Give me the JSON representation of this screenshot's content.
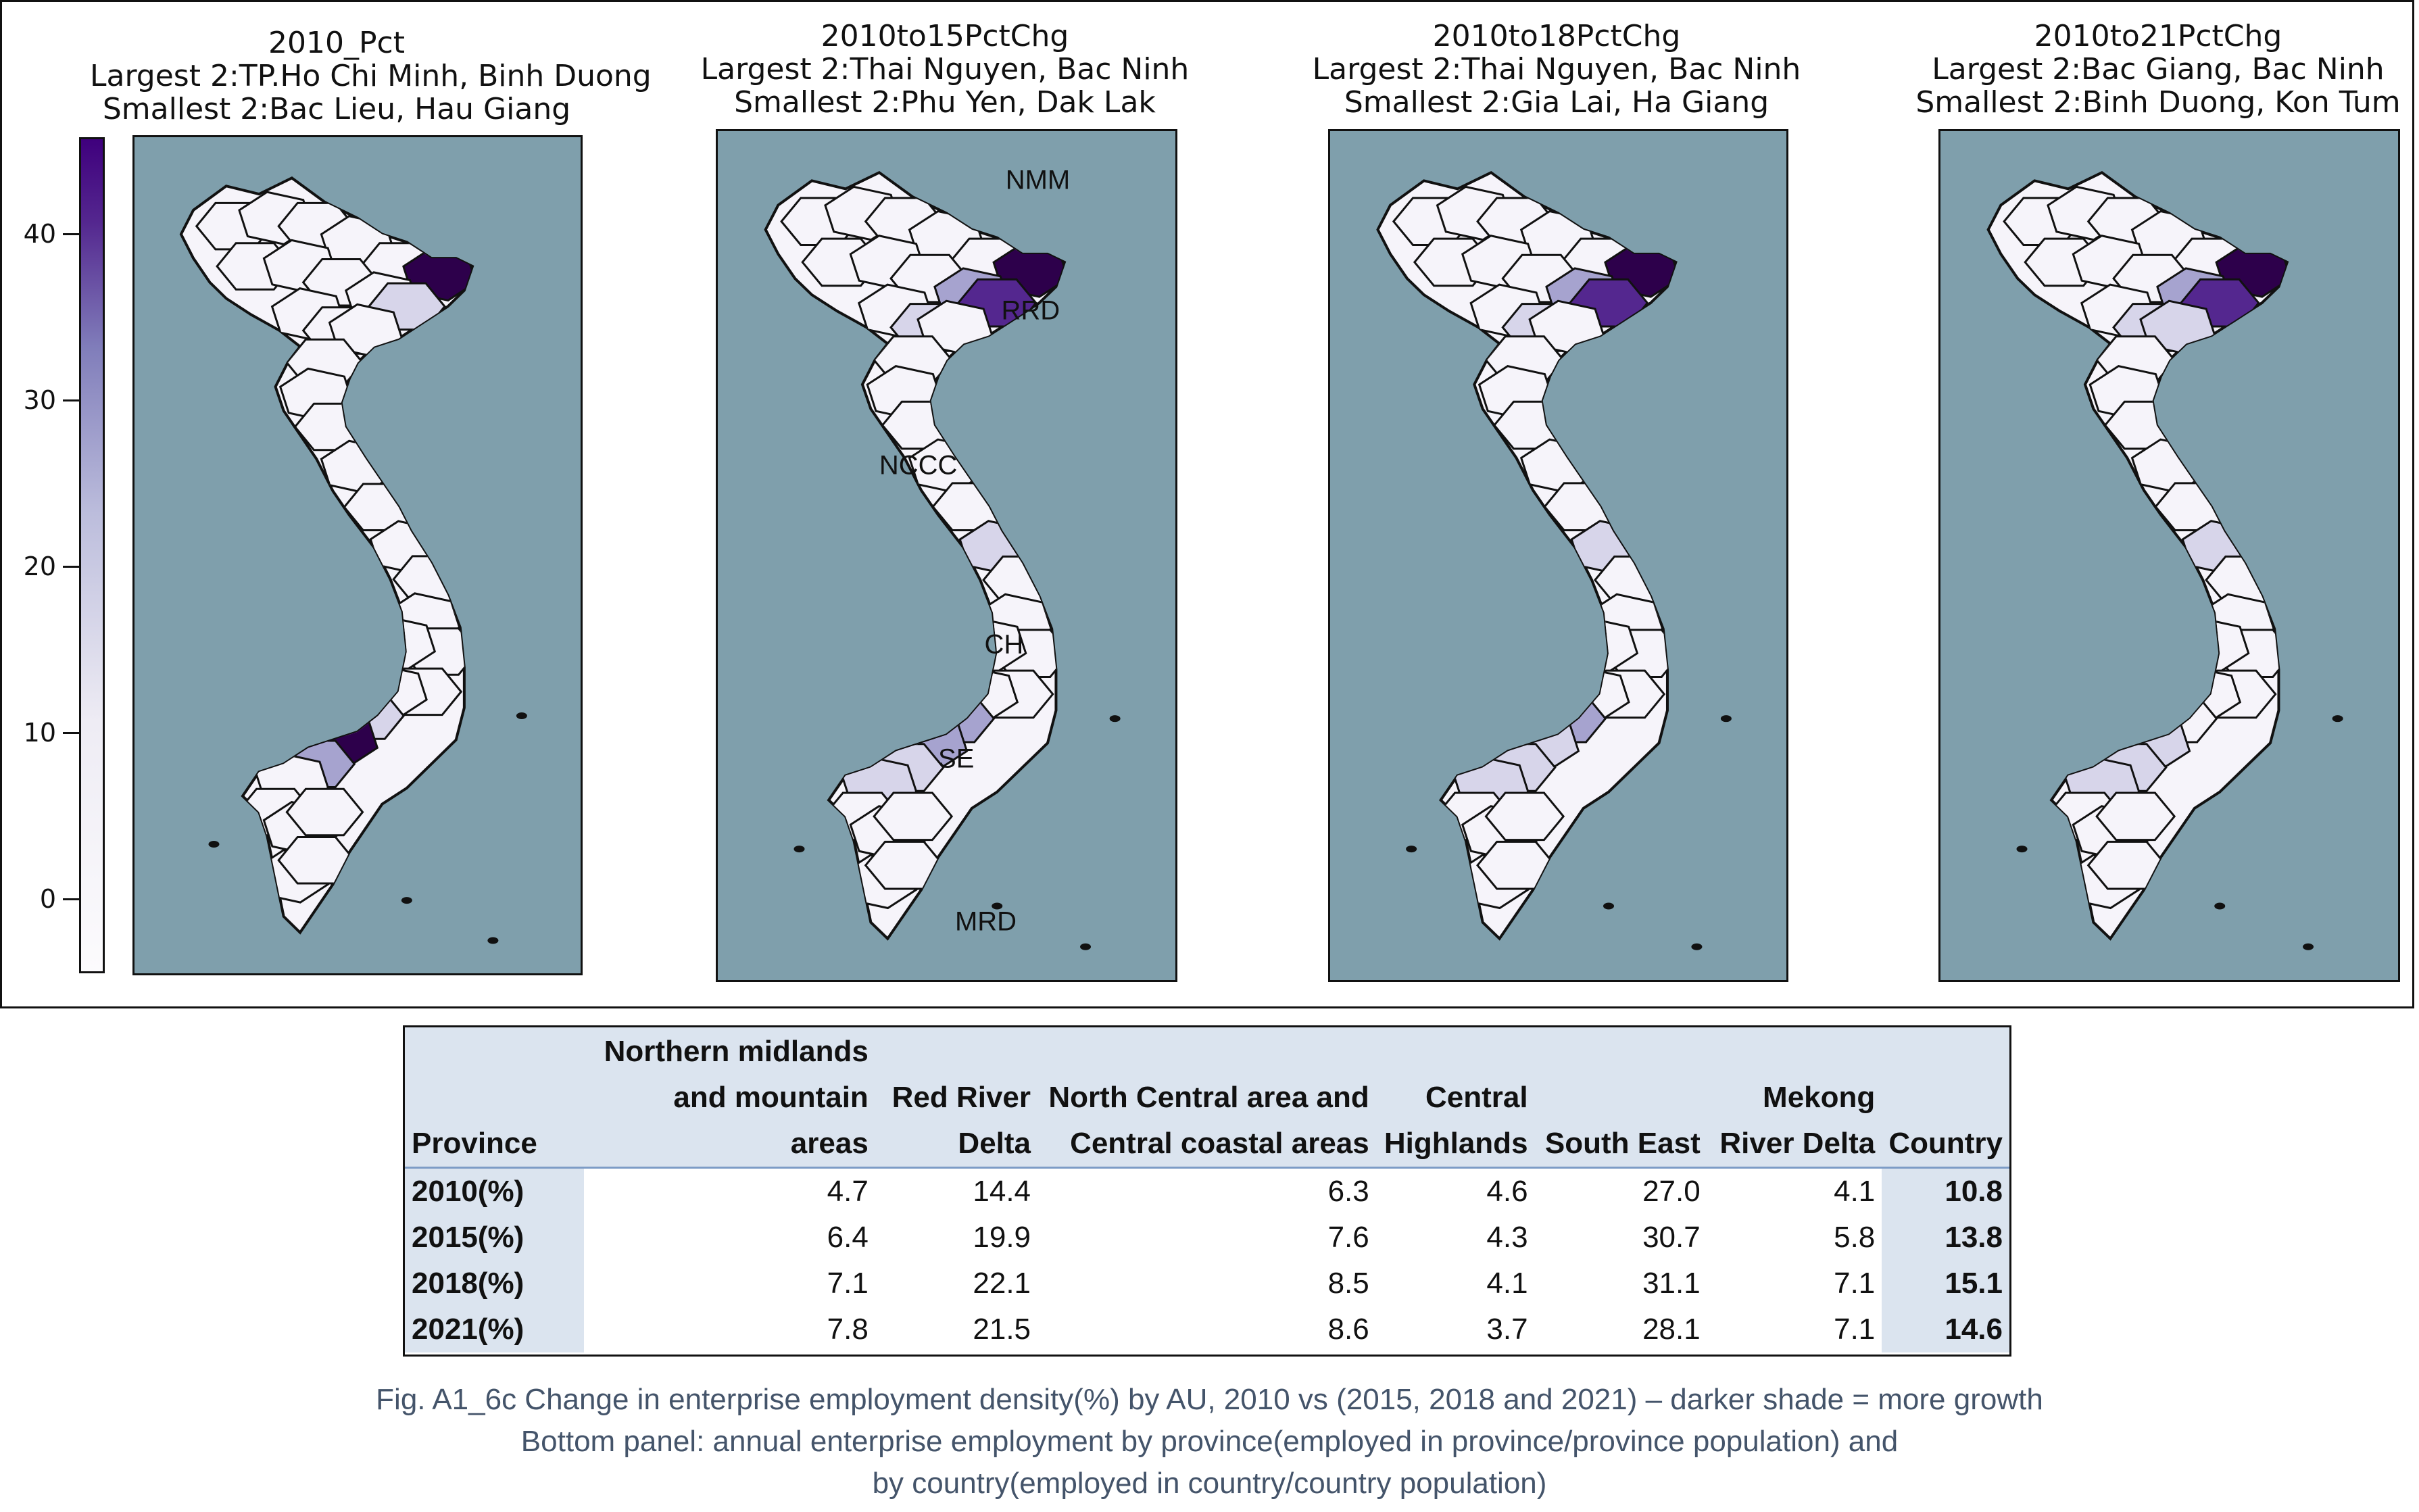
{
  "chart_data": [
    {
      "type": "choropleth-map",
      "panel": "2010_Pct",
      "title_lines": [
        "2010_Pct",
        "Largest 2:TP.Ho Chi Minh, Binh Duong",
        "Smallest 2:Bac Lieu, Hau Giang"
      ],
      "colorbar": {
        "ticks": [
          "40",
          "30",
          "20",
          "10",
          "0"
        ],
        "range": [
          -5,
          45
        ],
        "colormap": "Purples"
      },
      "highlight": {
        "darkest_areas": [
          "TP.Ho Chi Minh",
          "Binh Duong"
        ]
      }
    },
    {
      "type": "choropleth-map",
      "panel": "2010to15PctChg",
      "title_lines": [
        "2010to15PctChg",
        "Largest 2:Thai Nguyen, Bac Ninh",
        "Smallest 2:Phu Yen, Dak Lak"
      ],
      "region_labels": [
        "NMM",
        "RRD",
        "NCCC",
        "CH",
        "SE",
        "MRD"
      ]
    },
    {
      "type": "choropleth-map",
      "panel": "2010to18PctChg",
      "title_lines": [
        "2010to18PctChg",
        "Largest 2:Thai Nguyen, Bac Ninh",
        "Smallest 2:Gia Lai, Ha Giang"
      ]
    },
    {
      "type": "choropleth-map",
      "panel": "2010to21PctChg",
      "title_lines": [
        "2010to21PctChg",
        "Largest 2:Bac Giang, Bac Ninh",
        "Smallest 2:Binh Duong, Kon Tum"
      ]
    },
    {
      "type": "table",
      "columns": [
        {
          "key": "province",
          "label_lines": [
            "",
            "Province"
          ]
        },
        {
          "key": "nmm",
          "label_lines": [
            "Northern midlands",
            "and mountain areas"
          ]
        },
        {
          "key": "rrd",
          "label_lines": [
            "Red River",
            "Delta"
          ]
        },
        {
          "key": "nccc",
          "label_lines": [
            "North Central area and",
            "Central coastal areas"
          ]
        },
        {
          "key": "ch",
          "label_lines": [
            "Central",
            "Highlands"
          ]
        },
        {
          "key": "se",
          "label_lines": [
            "",
            "South East"
          ]
        },
        {
          "key": "mrd",
          "label_lines": [
            "Mekong",
            "River Delta"
          ]
        },
        {
          "key": "country",
          "label_lines": [
            "",
            "Country"
          ]
        }
      ],
      "rows": [
        {
          "label": "2010(%)",
          "values": [
            "4.7",
            "14.4",
            "6.3",
            "4.6",
            "27.0",
            "4.1",
            "10.8"
          ]
        },
        {
          "label": "2015(%)",
          "values": [
            "6.4",
            "19.9",
            "7.6",
            "4.3",
            "30.7",
            "5.8",
            "13.8"
          ]
        },
        {
          "label": "2018(%)",
          "values": [
            "7.1",
            "22.1",
            "8.5",
            "4.1",
            "31.1",
            "7.1",
            "15.1"
          ]
        },
        {
          "label": "2021(%)",
          "values": [
            "7.8",
            "21.5",
            "8.6",
            "3.7",
            "28.1",
            "7.1",
            "14.6"
          ]
        }
      ]
    }
  ],
  "caption": [
    "Fig. A1_6c Change in enterprise employment density(%) by AU, 2010 vs (2015, 2018 and 2021) – darker shade = more growth",
    "Bottom panel: annual enterprise employment by province(employed in province/province population) and",
    "by country(employed in country/country population)"
  ],
  "colors": {
    "ocean": "#7f9fac",
    "land_light": "#f6f4fa",
    "land_mid": "#d7d5ea",
    "land_medium": "#a6a3cf",
    "land_dark": "#54278f",
    "land_darkest": "#2d004b",
    "table_header_bg": "#dbe4ef",
    "caption_text": "#44546a"
  }
}
